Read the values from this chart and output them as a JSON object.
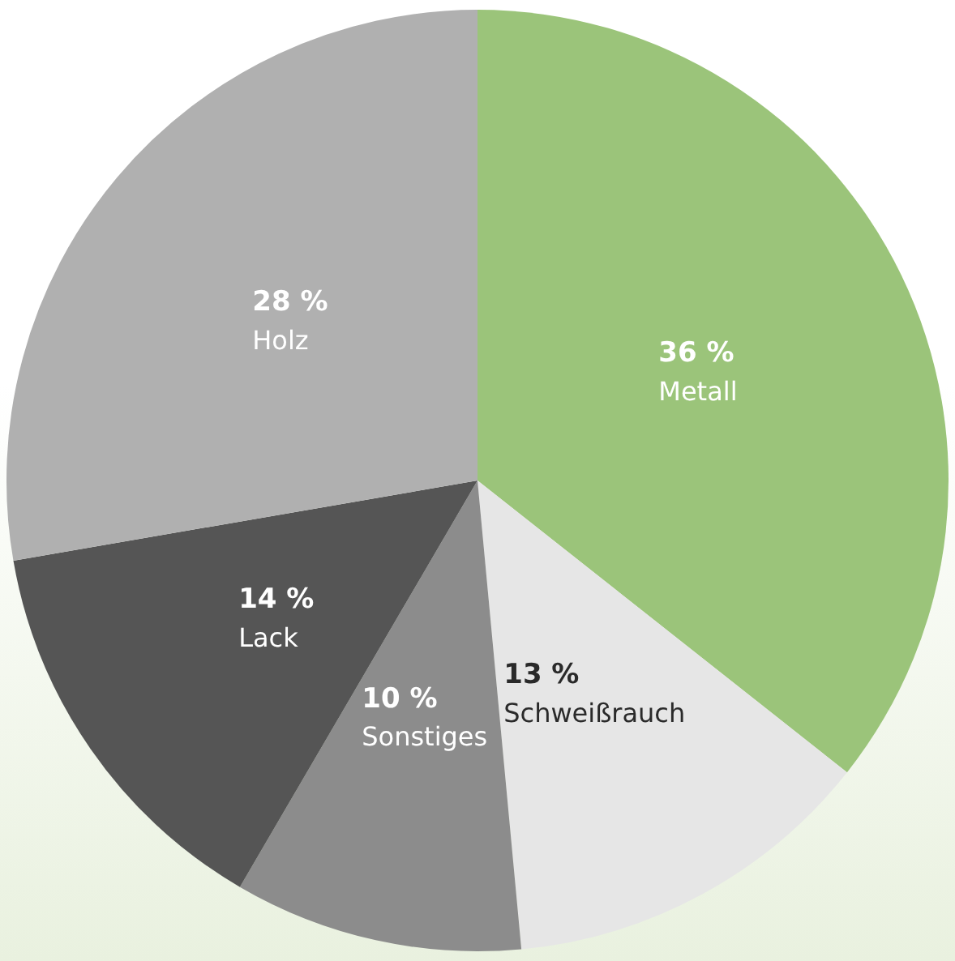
{
  "chart_data": {
    "type": "pie",
    "categories": [
      "Metall",
      "Schweißrauch",
      "Sonstiges",
      "Lack",
      "Holz"
    ],
    "values": [
      36,
      13,
      10,
      14,
      28
    ],
    "colors": [
      "#9bc47a",
      "#e6e6e6",
      "#8c8c8c",
      "#555555",
      "#b0b0b0"
    ],
    "value_labels": [
      "36 %",
      "13 %",
      "10 %",
      "14 %",
      "28 %"
    ],
    "legend": false
  }
}
